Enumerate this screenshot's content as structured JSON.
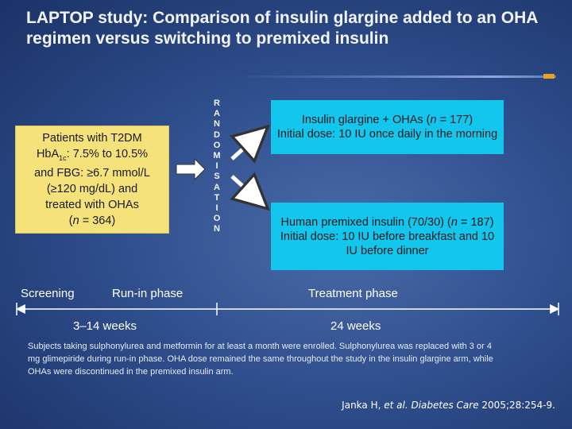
{
  "title": "LAPTOP study: Comparison of insulin glargine added to an OHA regimen versus switching to premixed insulin",
  "patients": {
    "line1": "Patients with T2DM",
    "hba1c_label": "HbA",
    "hba1c_sub": "1c",
    "hba1c_value": ": 7.5% to 10.5%",
    "line3": "and FBG: ≥6.7 mmol/L",
    "line4": "(≥120 mg/dL) and",
    "line5": "treated with OHAs",
    "line6_pre": "(",
    "line6_n": "n",
    "line6_post": " = 364)"
  },
  "randomisation_letters": [
    "R",
    "A",
    "N",
    "D",
    "O",
    "M",
    "I",
    "S",
    "A",
    "T",
    "I",
    "O",
    "N"
  ],
  "arm_glargine": {
    "line1_pre": "Insulin glargine + OHAs (",
    "line1_n": "n",
    "line1_post": " = 177)",
    "line2": "Initial dose: 10 IU once daily in the morning"
  },
  "arm_premixed": {
    "line1_pre": "Human premixed insulin (70/30) (",
    "line1_n": "n",
    "line1_post": " = 187)",
    "line2": "Initial dose: 10 IU before breakfast and 10 IU before dinner"
  },
  "phases": {
    "screening": "Screening",
    "run_in": "Run-in phase",
    "treatment": "Treatment phase"
  },
  "durations": {
    "run_in": "3–14 weeks",
    "treatment": "24 weeks"
  },
  "footnote": "Subjects taking sulphonylurea and metformin for at least a month were enrolled. Sulphonylurea was replaced with 3 or 4 mg glimepiride during run-in phase. OHA dose remained the same throughout the study in the insulin glargine arm, while OHAs were discontinued in the premixed insulin arm.",
  "citation": {
    "authors": "Janka H, ",
    "etal": "et al.",
    "journal": " Diabetes Care",
    "ref": " 2005;28:254-9."
  },
  "colors": {
    "background": "#2f4f8e",
    "patients_box": "#f5e27a",
    "treatment_box": "#13c6ee",
    "accent": "#f0a020"
  }
}
